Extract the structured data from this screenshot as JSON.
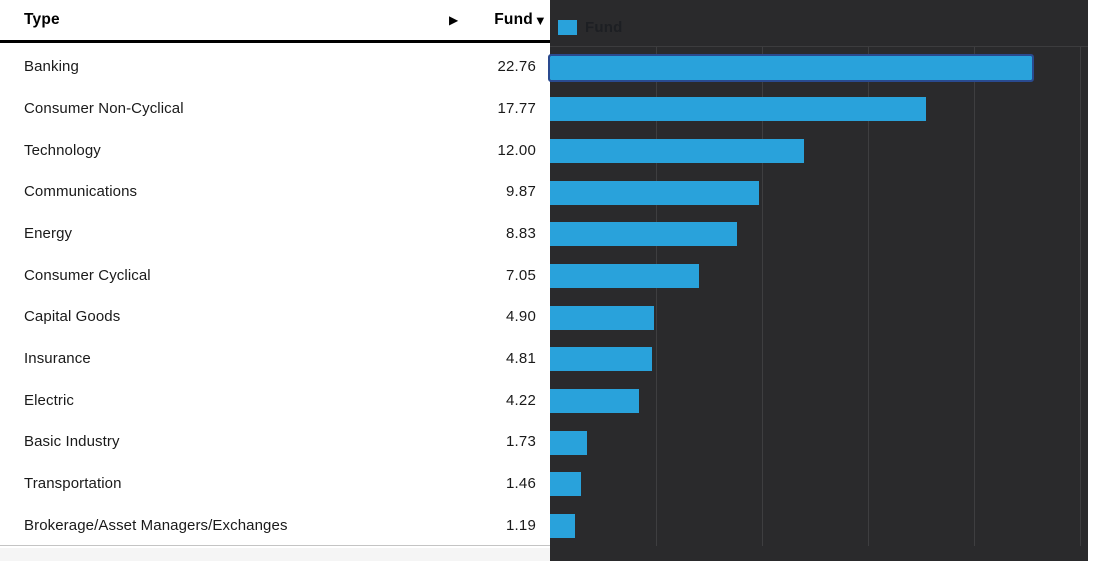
{
  "table": {
    "header": {
      "type_label": "Type",
      "expand_icon": "▶",
      "fund_label": "Fund",
      "sort_icon": "▼"
    },
    "rows": [
      {
        "type": "Banking",
        "fund": "22.76"
      },
      {
        "type": "Consumer Non-Cyclical",
        "fund": "17.77"
      },
      {
        "type": "Technology",
        "fund": "12.00"
      },
      {
        "type": "Communications",
        "fund": "9.87"
      },
      {
        "type": "Energy",
        "fund": "8.83"
      },
      {
        "type": "Consumer Cyclical",
        "fund": "7.05"
      },
      {
        "type": "Capital Goods",
        "fund": "4.90"
      },
      {
        "type": "Insurance",
        "fund": "4.81"
      },
      {
        "type": "Electric",
        "fund": "4.22"
      },
      {
        "type": "Basic Industry",
        "fund": "1.73"
      },
      {
        "type": "Transportation",
        "fund": "1.46"
      },
      {
        "type": "Brokerage/Asset Managers/Exchanges",
        "fund": "1.19"
      }
    ]
  },
  "chart_data": {
    "type": "bar",
    "orientation": "horizontal",
    "title": "",
    "legend": [
      {
        "label": "Fund",
        "color": "#29a2db"
      }
    ],
    "legend_position": "top-left",
    "categories": [
      "Banking",
      "Consumer Non-Cyclical",
      "Technology",
      "Communications",
      "Energy",
      "Consumer Cyclical",
      "Capital Goods",
      "Insurance",
      "Electric",
      "Basic Industry",
      "Transportation",
      "Brokerage/Asset Managers/Exchanges"
    ],
    "values": [
      22.76,
      17.77,
      12.0,
      9.87,
      8.83,
      7.05,
      4.9,
      4.81,
      4.22,
      1.73,
      1.46,
      1.19
    ],
    "selected_category": "Banking",
    "xlabel": "",
    "ylabel": "Type",
    "xlim": [
      0,
      25.4
    ],
    "xticks": [
      5,
      10,
      15,
      20,
      25
    ],
    "grid": true
  },
  "colors": {
    "bar_fill": "#29a2db",
    "selected_bar_outline": "#2a4a8f",
    "chart_background": "#2a2a2c",
    "gridline": "#3e3e40",
    "table_text": "#1a1a1a",
    "header_rule": "#000000",
    "legend_text": "#1d1f23",
    "footer_strip": "#f5f5f5"
  }
}
